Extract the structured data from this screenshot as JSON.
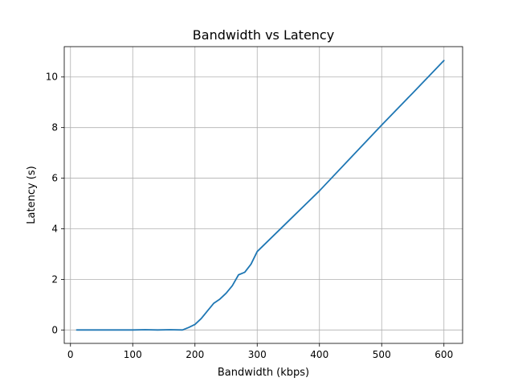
{
  "chart_data": {
    "type": "line",
    "title": "Bandwidth vs Latency",
    "xlabel": "Bandwidth (kbps)",
    "ylabel": "Latency (s)",
    "xlim": [
      -10,
      630
    ],
    "ylim": [
      -0.53,
      11.2
    ],
    "xticks": [
      0,
      100,
      200,
      300,
      400,
      500,
      600
    ],
    "yticks": [
      0,
      2,
      4,
      6,
      8,
      10
    ],
    "grid": true,
    "series": [
      {
        "name": "Latency",
        "color": "#1f77b4",
        "x": [
          10,
          20,
          40,
          60,
          80,
          100,
          120,
          140,
          160,
          180,
          190,
          200,
          210,
          220,
          230,
          240,
          250,
          260,
          270,
          280,
          290,
          300,
          350,
          400,
          450,
          500,
          550,
          600
        ],
        "y": [
          0.0,
          0.0,
          0.0,
          0.0,
          0.0,
          0.0,
          0.01,
          0.0,
          0.01,
          0.0,
          0.1,
          0.22,
          0.45,
          0.75,
          1.05,
          1.22,
          1.45,
          1.75,
          2.18,
          2.28,
          2.6,
          3.1,
          4.3,
          5.5,
          6.8,
          8.1,
          9.37,
          10.65
        ]
      }
    ]
  }
}
